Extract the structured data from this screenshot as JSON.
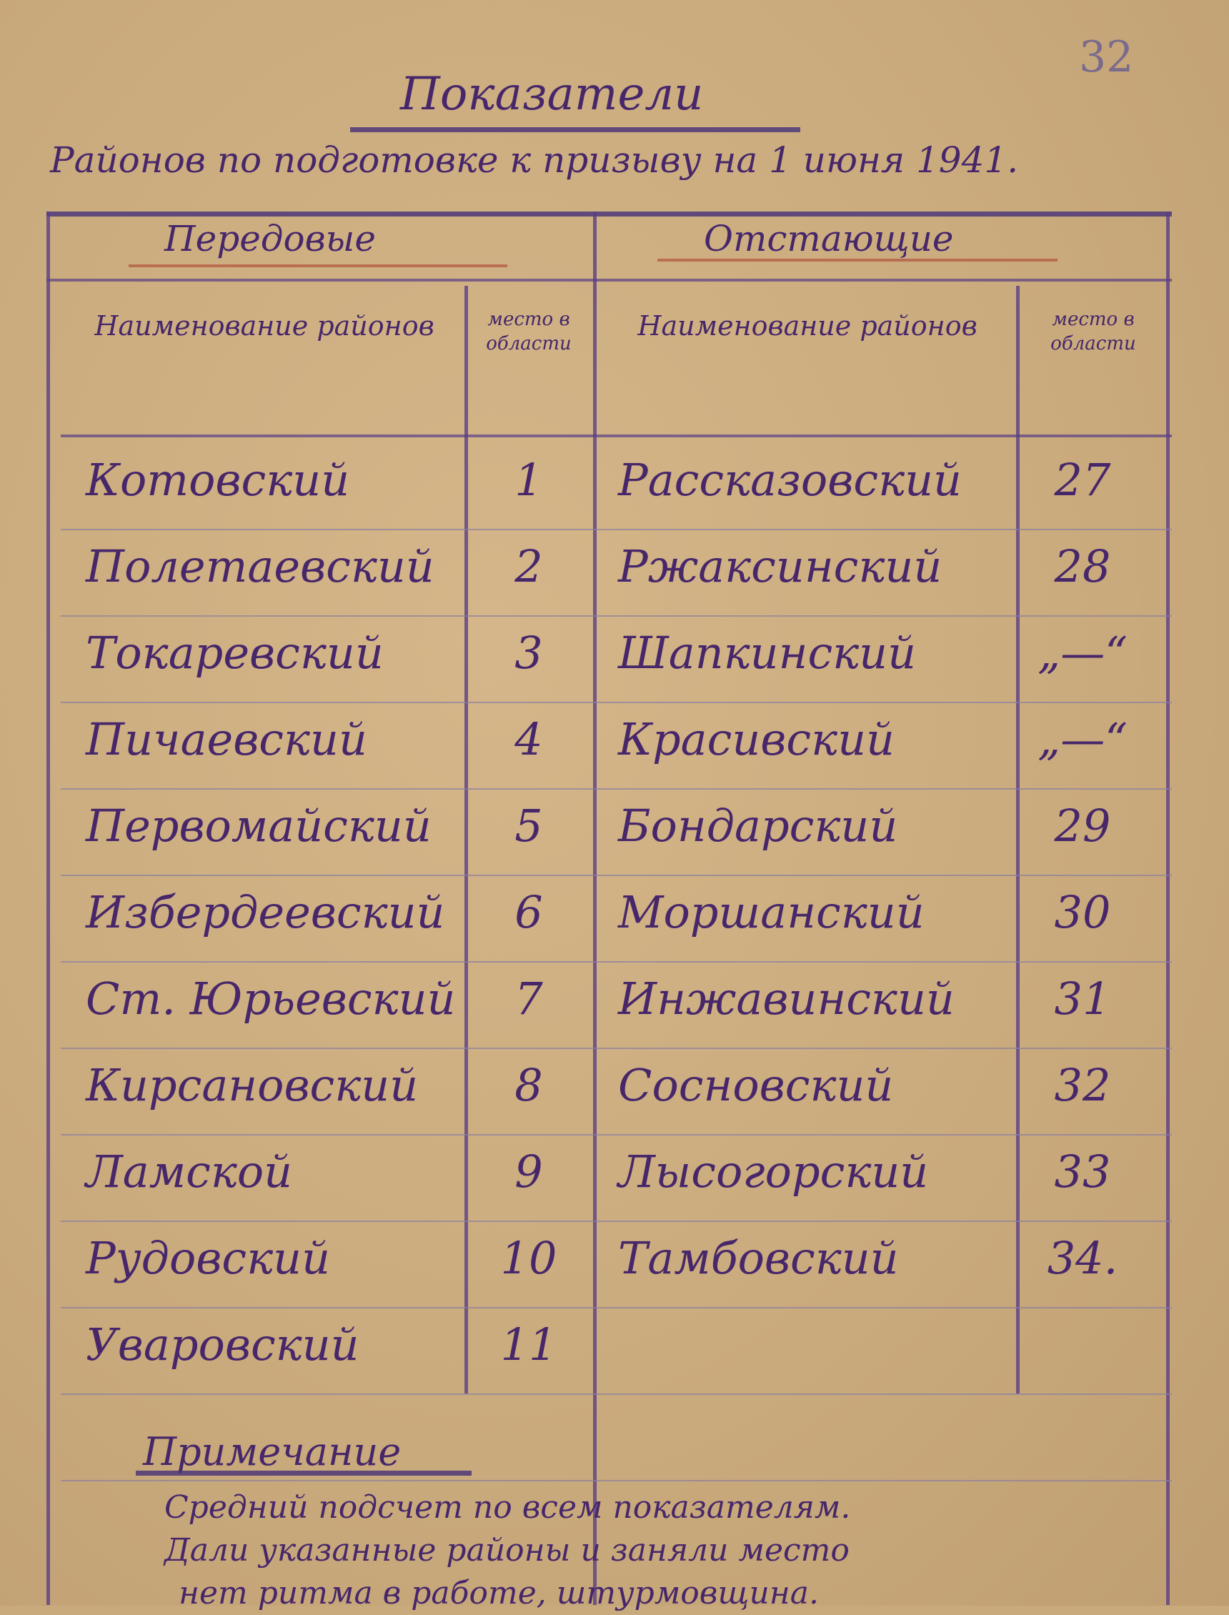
{
  "page_number": "32",
  "title": "Показатели",
  "subtitle": "Районов по подготовке к призыву на 1 июня 1941.",
  "sections": {
    "leading": "Передовые",
    "lagging": "Отстающие"
  },
  "columns": {
    "name": "Наименование районов",
    "place": "место в области"
  },
  "leading_rows": [
    {
      "name": "Котовский",
      "place": "1"
    },
    {
      "name": "Полетаевский",
      "place": "2"
    },
    {
      "name": "Токаревский",
      "place": "3"
    },
    {
      "name": "Пичаевский",
      "place": "4"
    },
    {
      "name": "Первомайский",
      "place": "5"
    },
    {
      "name": "Избердеевский",
      "place": "6"
    },
    {
      "name": "Ст. Юрьевский",
      "place": "7"
    },
    {
      "name": "Кирсановский",
      "place": "8"
    },
    {
      "name": "Ламской",
      "place": "9"
    },
    {
      "name": "Рудовский",
      "place": "10"
    },
    {
      "name": "Уваровский",
      "place": "11"
    }
  ],
  "lagging_rows": [
    {
      "name": "Рассказовский",
      "place": "27"
    },
    {
      "name": "Ржаксинский",
      "place": "28"
    },
    {
      "name": "Шапкинский",
      "place": "„—“"
    },
    {
      "name": "Красивский",
      "place": "„—“"
    },
    {
      "name": "Бондарский",
      "place": "29"
    },
    {
      "name": "Моршанский",
      "place": "30"
    },
    {
      "name": "Инжавинский",
      "place": "31"
    },
    {
      "name": "Сосновский",
      "place": "32"
    },
    {
      "name": "Лысогорский",
      "place": "33"
    },
    {
      "name": "Тамбовский",
      "place": "34."
    }
  ],
  "note": {
    "heading": "Примечание",
    "lines": [
      "Средний подсчет по всем показателям.",
      "Дали указанные районы и заняли место",
      "нет ритма в работе, штурмовщина."
    ]
  },
  "ink_color": "#47276a",
  "paper_color": "#c9aa7c"
}
